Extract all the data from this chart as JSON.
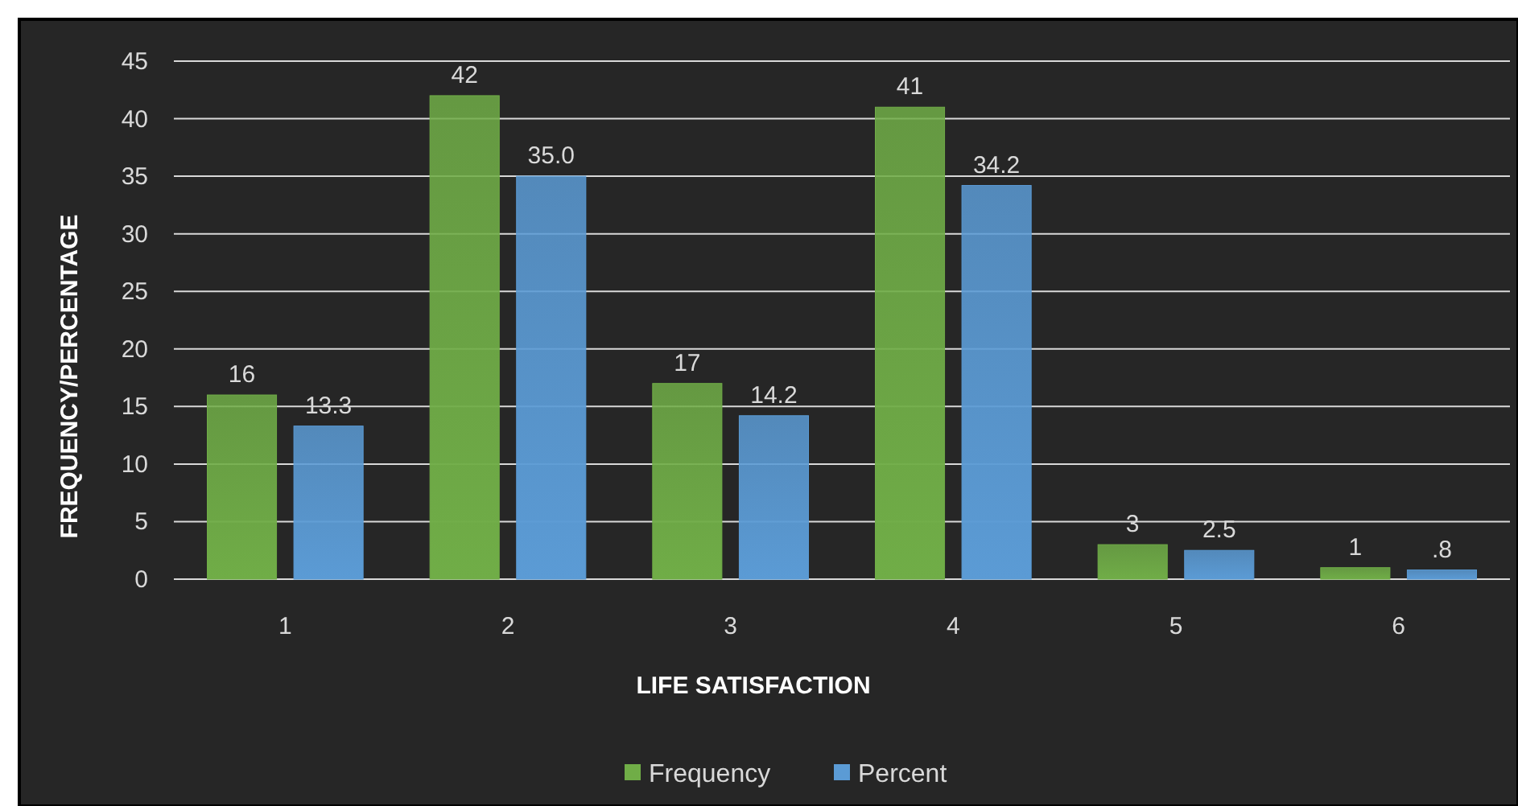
{
  "chart_data": {
    "type": "bar",
    "xlabel": "LIFE SATISFACTION",
    "ylabel": "FREQUENCY/PERCENTAGE",
    "categories": [
      "1",
      "2",
      "3",
      "4",
      "5",
      "6"
    ],
    "series": [
      {
        "name": "Frequency",
        "color": "#70ad47",
        "values": [
          16,
          42,
          17,
          41,
          3,
          1
        ],
        "value_labels": [
          "16",
          "42",
          "17",
          "41",
          "3",
          "1"
        ]
      },
      {
        "name": "Percent",
        "color": "#5b9bd5",
        "values": [
          13.3,
          35.0,
          14.2,
          34.2,
          2.5,
          0.8
        ],
        "value_labels": [
          "13.3",
          "35.0",
          "14.2",
          "34.2",
          "2.5",
          ".8"
        ]
      }
    ],
    "ylim": [
      0,
      45
    ],
    "yticks": [
      0,
      5,
      10,
      15,
      20,
      25,
      30,
      35,
      40,
      45
    ],
    "grid": "y",
    "legend": "bottom"
  }
}
